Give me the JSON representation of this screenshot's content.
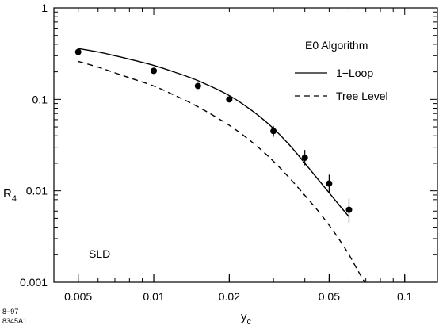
{
  "chart_data": {
    "type": "line",
    "title": "",
    "xlabel": "y",
    "xlabel_sub": "c",
    "ylabel": "R",
    "ylabel_sub": "4",
    "xscale": "log",
    "yscale": "log",
    "xlim": [
      0.004,
      0.135
    ],
    "ylim": [
      0.001,
      1
    ],
    "x_ticks": [
      {
        "value": 0.005,
        "label": "0.005"
      },
      {
        "value": 0.01,
        "label": "0.01"
      },
      {
        "value": 0.02,
        "label": "0.02"
      },
      {
        "value": 0.05,
        "label": "0.05"
      },
      {
        "value": 0.1,
        "label": "0.1"
      }
    ],
    "y_ticks": [
      {
        "value": 0.001,
        "label": "0.001"
      },
      {
        "value": 0.01,
        "label": "0.01"
      },
      {
        "value": 0.1,
        "label": "0.1"
      },
      {
        "value": 1,
        "label": "1"
      }
    ],
    "grid": false,
    "legend": {
      "title": "E0 Algorithm",
      "placement": "top-right",
      "entries": [
        {
          "label": "1−Loop",
          "style": "solid"
        },
        {
          "label": "Tree Level",
          "style": "dashed"
        }
      ]
    },
    "series": [
      {
        "name": "1−Loop",
        "kind": "line",
        "style": "solid",
        "x": [
          0.005,
          0.006,
          0.007,
          0.008,
          0.01,
          0.012,
          0.015,
          0.02,
          0.025,
          0.03,
          0.035,
          0.04,
          0.045,
          0.05,
          0.055,
          0.06
        ],
        "y": [
          0.36,
          0.33,
          0.3,
          0.275,
          0.235,
          0.2,
          0.16,
          0.11,
          0.073,
          0.048,
          0.031,
          0.02,
          0.0135,
          0.0095,
          0.0069,
          0.0052
        ]
      },
      {
        "name": "Tree Level",
        "kind": "line",
        "style": "dashed",
        "x": [
          0.005,
          0.006,
          0.007,
          0.008,
          0.01,
          0.012,
          0.015,
          0.02,
          0.025,
          0.03,
          0.035,
          0.04,
          0.045,
          0.05,
          0.055,
          0.06,
          0.065,
          0.07
        ],
        "y": [
          0.26,
          0.225,
          0.195,
          0.172,
          0.14,
          0.112,
          0.083,
          0.052,
          0.033,
          0.021,
          0.0135,
          0.0089,
          0.0061,
          0.0042,
          0.0029,
          0.002,
          0.00135,
          0.00095
        ]
      },
      {
        "name": "",
        "kind": "points",
        "x": [
          0.005,
          0.01,
          0.015,
          0.02,
          0.03,
          0.04,
          0.05,
          0.06
        ],
        "y": [
          0.33,
          0.205,
          0.14,
          0.1,
          0.045,
          0.023,
          0.012,
          0.0062
        ],
        "y_err_low": [
          0.31,
          0.195,
          0.132,
          0.094,
          0.039,
          0.019,
          0.0096,
          0.0045
        ],
        "y_err_high": [
          0.35,
          0.215,
          0.148,
          0.106,
          0.051,
          0.028,
          0.015,
          0.0082
        ]
      }
    ],
    "annotations": [
      {
        "text": "SLD",
        "placement": "bottom-left"
      }
    ]
  },
  "footnote": {
    "line1": "8−97",
    "line2": "8345A1"
  }
}
